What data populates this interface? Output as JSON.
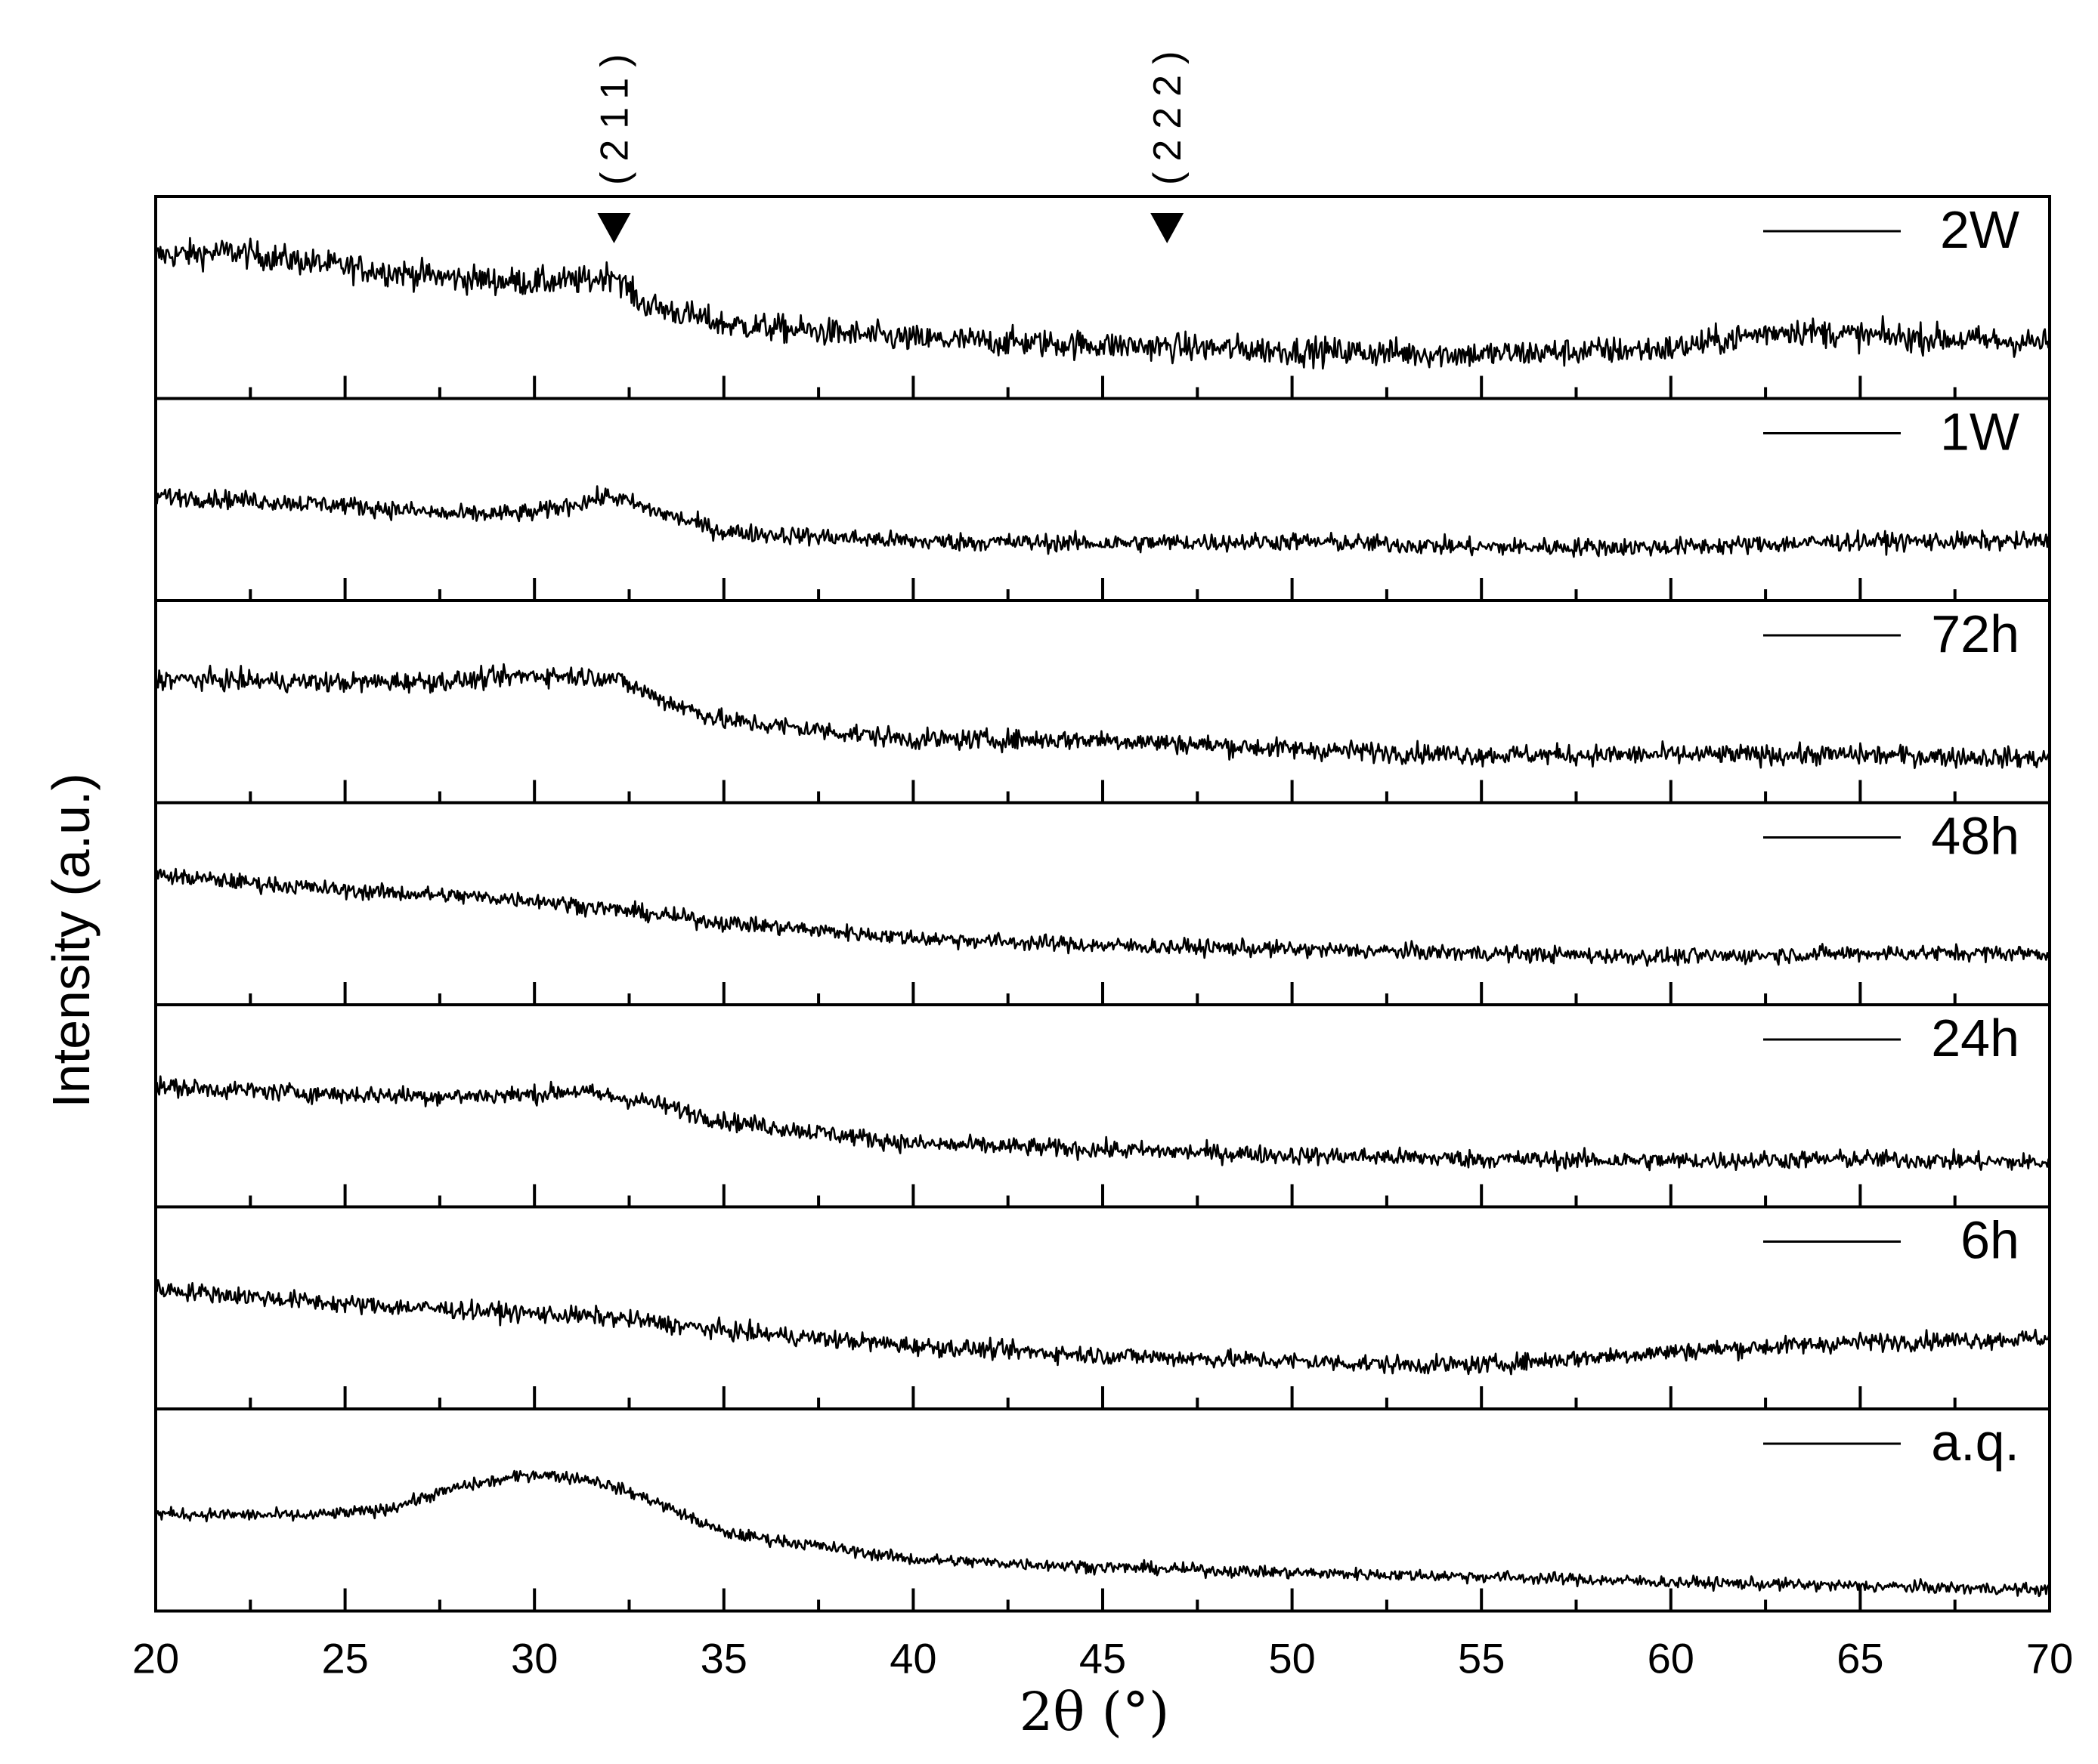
{
  "chart_data": {
    "type": "line",
    "xlabel": "2θ (°)",
    "ylabel": "Intensity (a.u.)",
    "xlim": [
      20,
      70
    ],
    "x_ticks": [
      "20",
      "25",
      "30",
      "35",
      "40",
      "45",
      "50",
      "55",
      "60",
      "65",
      "70"
    ],
    "x_minor_step": 2.5,
    "stacked_panels": true,
    "legend_position": "top-right of each panel",
    "annotations": [
      {
        "label": "(211)",
        "x": 32.1,
        "marker": "triangle-down"
      },
      {
        "label": "(222)",
        "x": 46.7,
        "marker": "triangle-down"
      }
    ],
    "series": [
      {
        "name": "2W",
        "profile": [
          [
            20,
            0.72
          ],
          [
            22,
            0.74
          ],
          [
            25,
            0.66
          ],
          [
            28,
            0.6
          ],
          [
            30,
            0.58
          ],
          [
            31.5,
            0.59
          ],
          [
            32.1,
            0.63
          ],
          [
            32.8,
            0.47
          ],
          [
            35,
            0.36
          ],
          [
            40,
            0.28
          ],
          [
            45,
            0.25
          ],
          [
            50,
            0.22
          ],
          [
            55,
            0.2
          ],
          [
            60,
            0.23
          ],
          [
            63,
            0.33
          ],
          [
            65,
            0.3
          ],
          [
            70,
            0.26
          ]
        ],
        "noise": 0.07
      },
      {
        "name": "1W",
        "profile": [
          [
            20,
            0.52
          ],
          [
            25,
            0.47
          ],
          [
            28,
            0.42
          ],
          [
            30,
            0.43
          ],
          [
            32,
            0.52
          ],
          [
            33,
            0.45
          ],
          [
            35,
            0.33
          ],
          [
            40,
            0.28
          ],
          [
            45,
            0.27
          ],
          [
            50,
            0.28
          ],
          [
            55,
            0.25
          ],
          [
            60,
            0.25
          ],
          [
            65,
            0.28
          ],
          [
            70,
            0.28
          ]
        ],
        "noise": 0.045
      },
      {
        "name": "72h",
        "profile": [
          [
            20,
            0.62
          ],
          [
            25,
            0.6
          ],
          [
            28,
            0.61
          ],
          [
            30,
            0.64
          ],
          [
            32,
            0.63
          ],
          [
            33.5,
            0.5
          ],
          [
            35,
            0.4
          ],
          [
            40,
            0.3
          ],
          [
            45,
            0.3
          ],
          [
            50,
            0.25
          ],
          [
            55,
            0.22
          ],
          [
            60,
            0.22
          ],
          [
            65,
            0.22
          ],
          [
            70,
            0.2
          ]
        ],
        "noise": 0.05
      },
      {
        "name": "48h",
        "profile": [
          [
            20,
            0.65
          ],
          [
            25,
            0.57
          ],
          [
            30,
            0.52
          ],
          [
            35,
            0.4
          ],
          [
            40,
            0.32
          ],
          [
            45,
            0.28
          ],
          [
            50,
            0.26
          ],
          [
            55,
            0.24
          ],
          [
            60,
            0.22
          ],
          [
            65,
            0.24
          ],
          [
            70,
            0.24
          ]
        ],
        "noise": 0.04
      },
      {
        "name": "24h",
        "profile": [
          [
            20,
            0.6
          ],
          [
            25,
            0.56
          ],
          [
            28,
            0.55
          ],
          [
            30,
            0.56
          ],
          [
            31,
            0.58
          ],
          [
            33,
            0.52
          ],
          [
            35,
            0.42
          ],
          [
            40,
            0.3
          ],
          [
            45,
            0.27
          ],
          [
            50,
            0.24
          ],
          [
            55,
            0.22
          ],
          [
            60,
            0.21
          ],
          [
            65,
            0.22
          ],
          [
            70,
            0.2
          ]
        ],
        "noise": 0.045
      },
      {
        "name": "6h",
        "profile": [
          [
            20,
            0.6
          ],
          [
            25,
            0.52
          ],
          [
            30,
            0.47
          ],
          [
            32,
            0.45
          ],
          [
            35,
            0.38
          ],
          [
            40,
            0.3
          ],
          [
            45,
            0.25
          ],
          [
            50,
            0.22
          ],
          [
            53,
            0.2
          ],
          [
            55,
            0.2
          ],
          [
            60,
            0.27
          ],
          [
            65,
            0.32
          ],
          [
            70,
            0.34
          ]
        ],
        "noise": 0.045
      },
      {
        "name": "a.q.",
        "profile": [
          [
            20,
            0.48
          ],
          [
            24,
            0.47
          ],
          [
            26,
            0.5
          ],
          [
            28,
            0.62
          ],
          [
            30,
            0.69
          ],
          [
            31.5,
            0.66
          ],
          [
            33,
            0.56
          ],
          [
            35,
            0.38
          ],
          [
            40,
            0.24
          ],
          [
            45,
            0.2
          ],
          [
            50,
            0.17
          ],
          [
            55,
            0.15
          ],
          [
            60,
            0.12
          ],
          [
            65,
            0.1
          ],
          [
            70,
            0.08
          ]
        ],
        "noise": 0.03
      }
    ]
  }
}
